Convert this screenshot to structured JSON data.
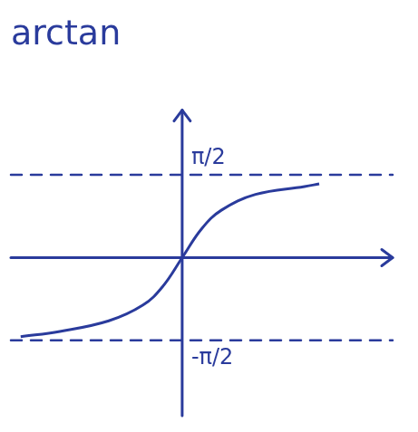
{
  "chart_data": {
    "type": "line",
    "title": "arctan",
    "x": [
      -3.3,
      -2.5,
      -1.5,
      -0.8,
      -0.4,
      0,
      0.4,
      0.8,
      1.5,
      2.5,
      2.8
    ],
    "values": [
      -1.5,
      -1.4,
      -1.2,
      -0.9,
      -0.55,
      0,
      0.55,
      0.9,
      1.2,
      1.35,
      1.4
    ],
    "color": "#2a3b9c",
    "line_style": "solid",
    "xlim": [
      -3.5,
      4.3
    ],
    "xticks": [],
    "ylim": [
      -3,
      2.8
    ],
    "yticks": [
      {
        "value": 1.571,
        "label": "π/2"
      },
      {
        "value": -1.571,
        "label": "-π/2"
      }
    ],
    "grid": true,
    "tick_labels": "y"
  }
}
